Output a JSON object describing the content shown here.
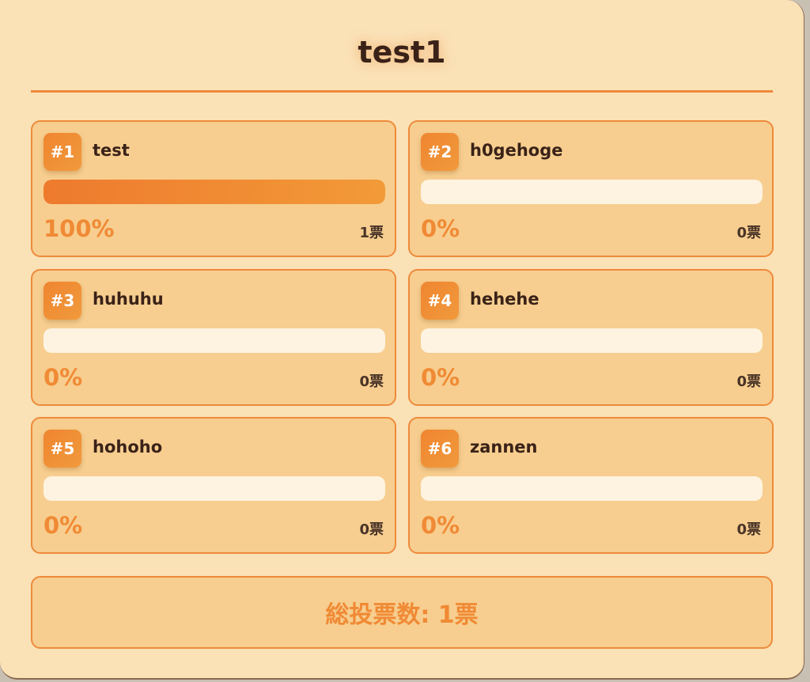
{
  "poll": {
    "title": "test1"
  },
  "colors": {
    "accent": "#ee8a3b",
    "panel_bg": "#fae1b6",
    "card_bg": "#f7ce8f",
    "text": "#3a2218"
  },
  "options": [
    {
      "rank": "#1",
      "name": "test",
      "percent_label": "100%",
      "percent": 100,
      "votes": "1票"
    },
    {
      "rank": "#2",
      "name": "h0gehoge",
      "percent_label": "0%",
      "percent": 0,
      "votes": "0票"
    },
    {
      "rank": "#3",
      "name": "huhuhu",
      "percent_label": "0%",
      "percent": 0,
      "votes": "0票"
    },
    {
      "rank": "#4",
      "name": "hehehe",
      "percent_label": "0%",
      "percent": 0,
      "votes": "0票"
    },
    {
      "rank": "#5",
      "name": "hohoho",
      "percent_label": "0%",
      "percent": 0,
      "votes": "0票"
    },
    {
      "rank": "#6",
      "name": "zannen",
      "percent_label": "0%",
      "percent": 0,
      "votes": "0票"
    }
  ],
  "total": {
    "label": "総投票数: 1票"
  }
}
